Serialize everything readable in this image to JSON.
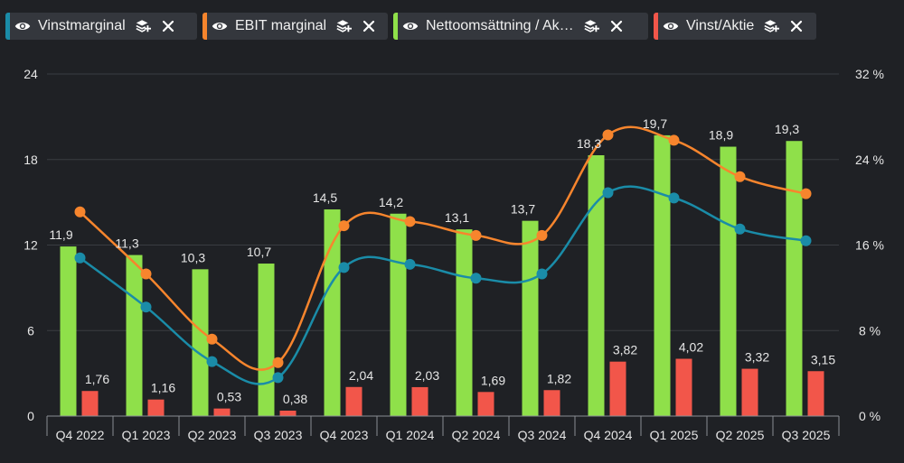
{
  "legend": [
    {
      "label": "Vinstmarginal",
      "color": "#1a8ca8",
      "chip_width": 212
    },
    {
      "label": "EBIT marginal",
      "color": "#f7852d",
      "chip_width": 205
    },
    {
      "label": "Nettoomsättning / Ak…",
      "color": "#8fe04a",
      "chip_width": 282
    },
    {
      "label": "Vinst/Aktie",
      "color": "#f2564a",
      "chip_width": 180
    }
  ],
  "chart_data": {
    "type": "bar+line",
    "categories": [
      "Q4 2022",
      "Q1 2023",
      "Q2 2023",
      "Q3 2023",
      "Q4 2023",
      "Q1 2024",
      "Q2 2024",
      "Q3 2024",
      "Q4 2024",
      "Q1 2025",
      "Q2 2025",
      "Q3 2025"
    ],
    "left_axis": {
      "min": 0,
      "max": 24,
      "ticks": [
        "0",
        "6",
        "12",
        "18",
        "24"
      ]
    },
    "right_axis": {
      "min": 0,
      "max": 32,
      "ticks": [
        "0 %",
        "8 %",
        "16 %",
        "24 %",
        "32 %"
      ]
    },
    "bars": [
      {
        "name": "Nettoomsättning / Aktie",
        "color": "#8fe04a",
        "values": [
          11.9,
          11.3,
          10.3,
          10.7,
          14.5,
          14.2,
          13.1,
          13.7,
          18.3,
          19.7,
          18.9,
          19.3
        ],
        "labels": [
          "11,9",
          "11,3",
          "10,3",
          "10,7",
          "14,5",
          "14,2",
          "13,1",
          "13,7",
          "18,3",
          "19,7",
          "18,9",
          "19,3"
        ]
      },
      {
        "name": "Vinst/Aktie",
        "color": "#f2564a",
        "values": [
          1.76,
          1.16,
          0.53,
          0.38,
          2.04,
          2.03,
          1.69,
          1.82,
          3.82,
          4.02,
          3.32,
          3.15
        ],
        "labels": [
          "1,76",
          "1,16",
          "0,53",
          "0,38",
          "2,04",
          "2,03",
          "1,69",
          "1,82",
          "3,82",
          "4,02",
          "3,32",
          "3,15"
        ]
      }
    ],
    "lines": [
      {
        "name": "Vinstmarginal",
        "color": "#1a8ca8",
        "axis": "right",
        "values": [
          14.8,
          10.2,
          5.1,
          3.6,
          13.9,
          14.2,
          12.9,
          13.3,
          20.9,
          20.4,
          17.5,
          16.4
        ]
      },
      {
        "name": "EBIT marginal",
        "color": "#f7852d",
        "axis": "right",
        "values": [
          19.1,
          13.3,
          7.2,
          5.0,
          17.8,
          18.2,
          16.9,
          16.9,
          26.3,
          25.8,
          22.4,
          20.8
        ]
      }
    ]
  }
}
